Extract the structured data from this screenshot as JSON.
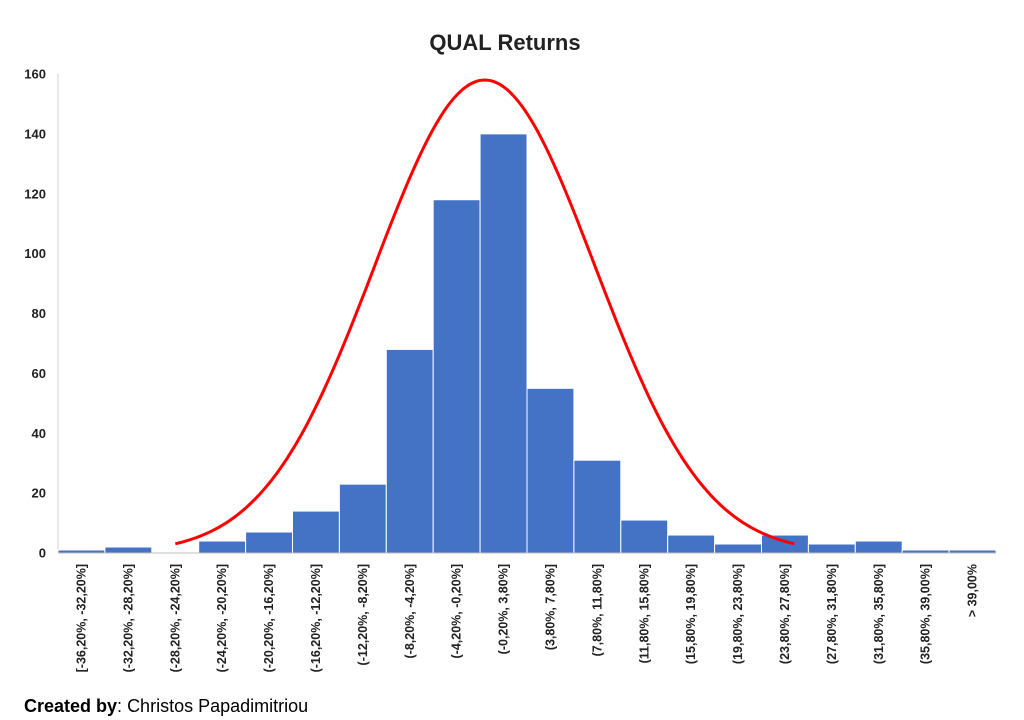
{
  "chart_data": {
    "type": "bar",
    "title": "QUAL Returns",
    "xlabel": "",
    "ylabel": "",
    "ylim": [
      0,
      160
    ],
    "yticks": [
      0,
      20,
      40,
      60,
      80,
      100,
      120,
      140,
      160
    ],
    "categories": [
      "[-36,20%, -32,20%]",
      "(-32,20%, -28,20%]",
      "(-28,20%, -24,20%]",
      "(-24,20%, -20,20%]",
      "(-20,20%, -16,20%]",
      "(-16,20%, -12,20%]",
      "(-12,20%, -8,20%]",
      "(-8,20%, -4,20%]",
      "(-4,20%, -0,20%]",
      "(-0,20%, 3,80%]",
      "(3,80%, 7,80%]",
      "(7,80%, 11,80%]",
      "(11,80%, 15,80%]",
      "(15,80%, 19,80%]",
      "(19,80%, 23,80%]",
      "(23,80%, 27,80%]",
      "(27,80%, 31,80%]",
      "(31,80%, 35,80%]",
      "(35,80%, 39,00%]",
      "> 39,00%"
    ],
    "values": [
      1,
      2,
      0,
      4,
      7,
      14,
      23,
      68,
      118,
      140,
      55,
      31,
      11,
      6,
      3,
      6,
      3,
      4,
      1,
      1
    ],
    "bar_color": "#4472C4",
    "normal_curve": {
      "color": "#FF0000",
      "peak_value": 158,
      "peak_category_position": 9.1,
      "sigma_categories": 2.35,
      "start_category_position": 2.5,
      "end_category_position": 15.7
    },
    "grid": false,
    "legend": "none"
  },
  "credit": {
    "label": "Created by",
    "separator": ": ",
    "author": "Christos Papadimitriou"
  }
}
